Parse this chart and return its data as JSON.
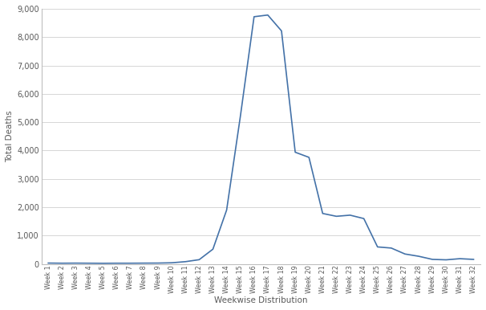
{
  "weeks": [
    "Week 1",
    "Week 2",
    "Week 3",
    "Week 4",
    "Week 5",
    "Week 6",
    "Week 7",
    "Week 8",
    "Week 9",
    "Week 10",
    "Week 11",
    "Week 12",
    "Week 13",
    "Week 14",
    "Week 15",
    "Week 16",
    "Week 17",
    "Week 18",
    "Week 19",
    "Week 20",
    "Week 21",
    "Week 22",
    "Week 23",
    "Week 24",
    "Week 25",
    "Week 26",
    "Week 27",
    "Week 28",
    "Week 29",
    "Week 30",
    "Week 31",
    "Week 32"
  ],
  "values": [
    30,
    25,
    28,
    25,
    22,
    25,
    25,
    28,
    30,
    40,
    80,
    150,
    520,
    1900,
    5200,
    8720,
    8780,
    8220,
    3940,
    3760,
    1780,
    1680,
    1720,
    1600,
    600,
    560,
    350,
    270,
    160,
    145,
    185,
    160
  ],
  "line_color": "#4472a8",
  "xlabel": "Weekwise Distribution",
  "ylabel": "Total Deaths",
  "ylim": [
    0,
    9000
  ],
  "yticks": [
    0,
    1000,
    2000,
    3000,
    4000,
    5000,
    6000,
    7000,
    8000,
    9000
  ],
  "background_color": "#ffffff",
  "grid_color": "#d0d0d0",
  "font_color": "#595959",
  "tick_color": "#595959",
  "line_width": 1.2,
  "spine_color": "#bfbfbf",
  "ylabel_fontsize": 7.5,
  "xlabel_fontsize": 7.5,
  "ytick_fontsize": 7.0,
  "xtick_fontsize": 5.8
}
